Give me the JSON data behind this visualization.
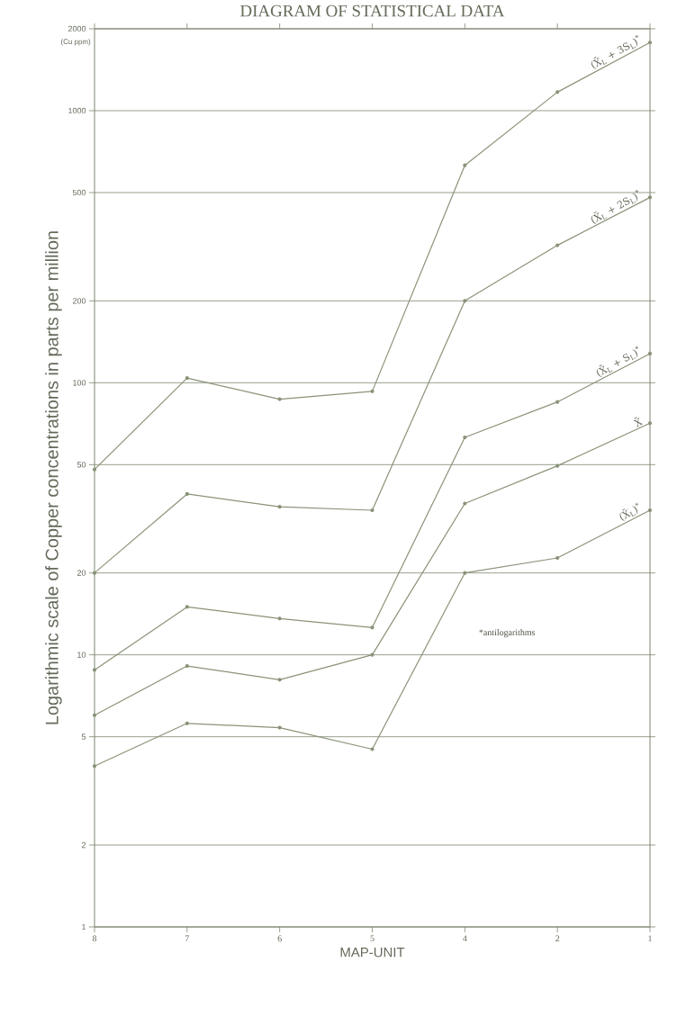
{
  "chart_data": {
    "type": "line",
    "title": "DIAGRAM OF STATISTICAL DATA",
    "xlabel": "MAP-UNIT",
    "ylabel": "Logarithmic scale of Copper concentrations in parts per million",
    "annotations": [
      "(Cu ppm)",
      "*antilogarithms"
    ],
    "categories": [
      "8",
      "7",
      "6",
      "5",
      "4",
      "2",
      "1"
    ],
    "series": [
      {
        "name": "(X̄$_{L}$ + 3S$_{L}$)$^{*}$",
        "color": "#8a9378",
        "values": [
          48,
          104,
          87,
          93,
          630,
          1170,
          1780
        ]
      },
      {
        "name": "(X̄$_{L}$ + 2S$_{L}$)$^{*}$",
        "color": "#8a9378",
        "values": [
          20,
          39,
          35,
          34,
          200,
          320,
          480
        ]
      },
      {
        "name": "(X̄$_{L}$ + S$_{L}$)$^{*}$",
        "color": "#8a9378",
        "values": [
          8.8,
          15,
          13.6,
          12.6,
          63,
          85,
          128
        ]
      },
      {
        "name": "X̄",
        "color": "#8a9378",
        "values": [
          6.0,
          9.1,
          8.1,
          10,
          36,
          49.5,
          71
        ]
      },
      {
        "name": "(X̄$_{L}$)$^{*}$",
        "color": "#8a9378",
        "values": [
          3.9,
          5.6,
          5.4,
          4.5,
          20,
          22.7,
          34
        ]
      }
    ],
    "ylim": [
      1,
      2000
    ],
    "yticks": [
      1,
      2,
      5,
      10,
      20,
      50,
      100,
      200,
      500,
      1000,
      2000
    ],
    "log": "y",
    "grid": "y",
    "marker": "circle",
    "line_style": "solid"
  }
}
